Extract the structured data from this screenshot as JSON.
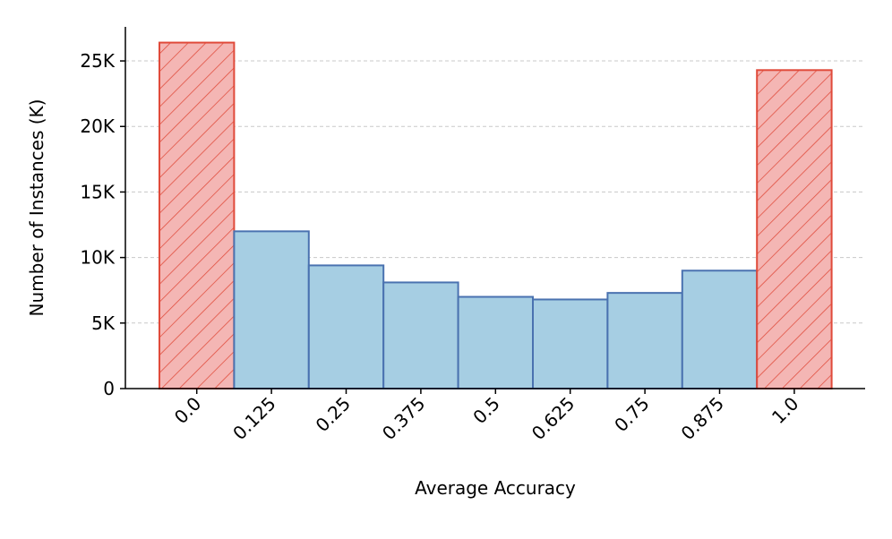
{
  "chart_data": {
    "type": "bar",
    "x_label": "Average Accuracy",
    "y_label": "Number of Instances (K)",
    "categories": [
      "0.0",
      "0.125",
      "0.25",
      "0.375",
      "0.5",
      "0.625",
      "0.75",
      "0.875",
      "1.0"
    ],
    "values": [
      26.4,
      12.0,
      9.4,
      8.1,
      7.0,
      6.8,
      7.3,
      9.0,
      24.3
    ],
    "colors": [
      "#f4b6b4",
      "#a6cee3",
      "#a6cee3",
      "#a6cee3",
      "#a6cee3",
      "#a6cee3",
      "#a6cee3",
      "#a6cee3",
      "#f4b6b4"
    ],
    "edge_colors": [
      "#e04a3a",
      "#4a72b0",
      "#4a72b0",
      "#4a72b0",
      "#4a72b0",
      "#4a72b0",
      "#4a72b0",
      "#4a72b0",
      "#e04a3a"
    ],
    "hatch": [
      true,
      false,
      false,
      false,
      false,
      false,
      false,
      false,
      true
    ],
    "ylim": [
      0,
      27.6
    ],
    "yticks": [
      0,
      {
        "value": 5,
        "label": "5K"
      },
      {
        "value": 10,
        "label": "10K"
      },
      {
        "value": 15,
        "label": "15K"
      },
      {
        "value": 20,
        "label": "20K"
      },
      {
        "value": 25,
        "label": "25K"
      }
    ],
    "grid": true
  }
}
